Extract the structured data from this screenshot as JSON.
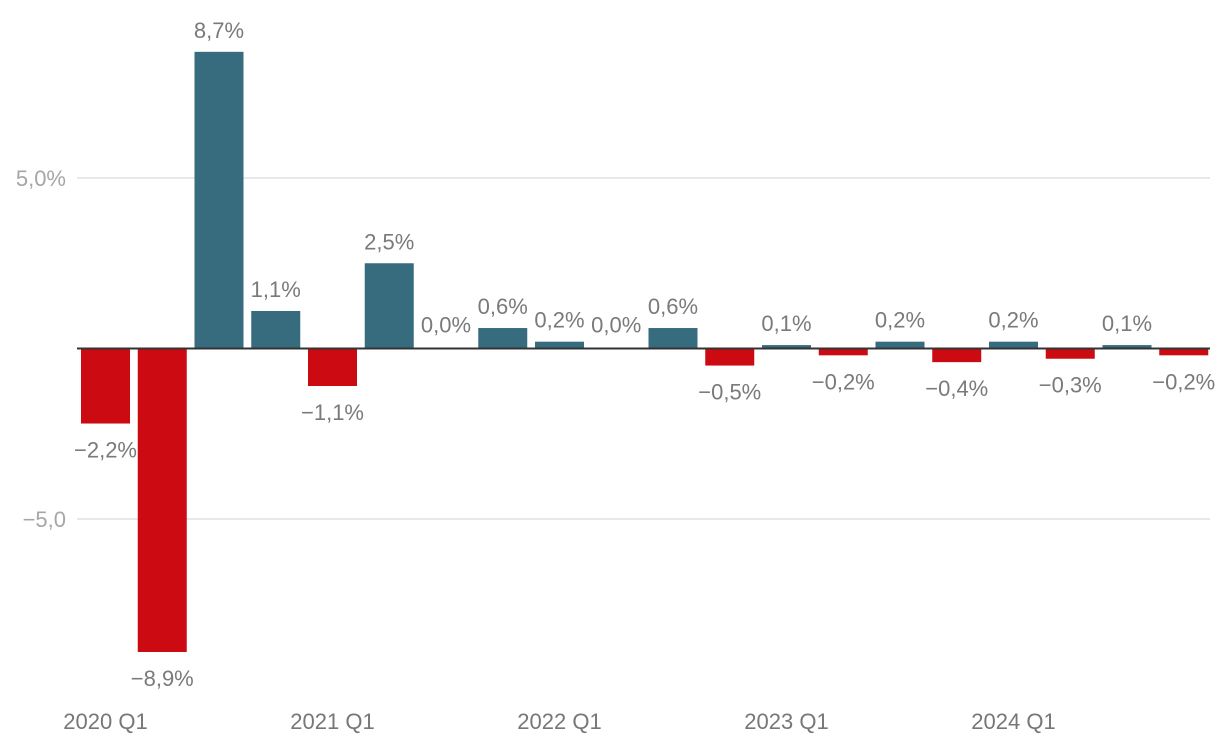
{
  "chart_data": {
    "type": "bar",
    "categories": [
      "2020 Q1",
      "2020 Q2",
      "2020 Q3",
      "2020 Q4",
      "2021 Q1",
      "2021 Q2",
      "2021 Q3",
      "2021 Q4",
      "2022 Q1",
      "2022 Q2",
      "2022 Q3",
      "2022 Q4",
      "2023 Q1",
      "2023 Q2",
      "2023 Q3",
      "2023 Q4",
      "2024 Q1",
      "2024 Q2",
      "2024 Q3",
      "2024 Q4"
    ],
    "values": [
      -2.2,
      -8.9,
      8.7,
      1.1,
      -1.1,
      2.5,
      0.0,
      0.6,
      0.2,
      0.0,
      0.6,
      -0.5,
      0.1,
      -0.2,
      0.2,
      -0.4,
      0.2,
      -0.3,
      0.1,
      -0.2
    ],
    "data_labels": [
      "−2,2%",
      "−8,9%",
      "8,7%",
      "1,1%",
      "−1,1%",
      "2,5%",
      "0,0%",
      "0,6%",
      "0,2%",
      "0,0%",
      "0,6%",
      "−0,5%",
      "0,1%",
      "−0,2%",
      "0,2%",
      "−0,4%",
      "0,2%",
      "−0,3%",
      "0,1%",
      "−0,2%"
    ],
    "x_tick_labels": [
      {
        "index": 0,
        "label": "2020 Q1"
      },
      {
        "index": 4,
        "label": "2021 Q1"
      },
      {
        "index": 8,
        "label": "2022 Q1"
      },
      {
        "index": 12,
        "label": "2023 Q1"
      },
      {
        "index": 16,
        "label": "2024 Q1"
      }
    ],
    "y_ticks": [
      {
        "value": 5,
        "label": "5,0%"
      },
      {
        "value": -5,
        "label": "−5,0"
      }
    ],
    "ylim": [
      -10,
      10
    ],
    "grid": true,
    "colors": {
      "positive": "#376b7e",
      "negative": "#cc0a11"
    },
    "title": "",
    "xlabel": "",
    "ylabel": ""
  }
}
